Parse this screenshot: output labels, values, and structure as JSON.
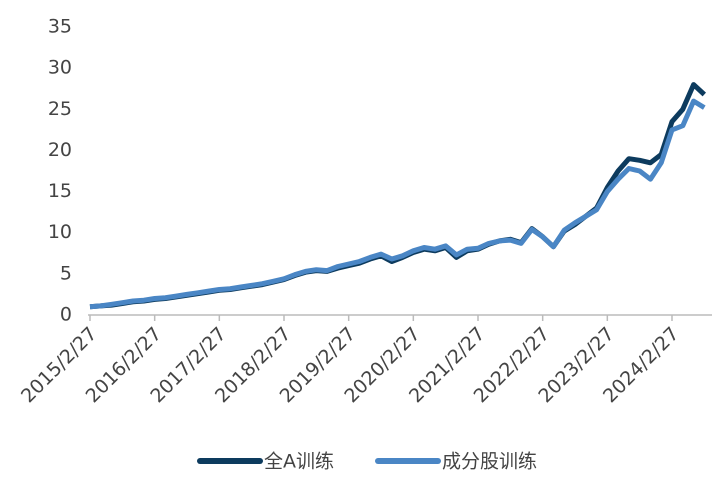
{
  "chart_data": {
    "type": "line",
    "categories": [
      "2015/2/27",
      null,
      null,
      null,
      null,
      null,
      "2016/2/27",
      null,
      null,
      null,
      null,
      null,
      "2017/2/27",
      null,
      null,
      null,
      null,
      null,
      "2018/2/27",
      null,
      null,
      null,
      null,
      null,
      "2019/2/27",
      null,
      null,
      null,
      null,
      null,
      "2020/2/27",
      null,
      null,
      null,
      null,
      null,
      "2021/2/27",
      null,
      null,
      null,
      null,
      null,
      "2022/2/27",
      null,
      null,
      null,
      null,
      null,
      "2023/2/27",
      null,
      null,
      null,
      null,
      null,
      "2024/2/27",
      null,
      null,
      null
    ],
    "series": [
      {
        "name": "全A训练",
        "color": "#0d3b5e",
        "values": [
          1.0,
          1.1,
          1.2,
          1.4,
          1.6,
          1.7,
          1.9,
          2.0,
          2.2,
          2.4,
          2.6,
          2.8,
          3.0,
          3.1,
          3.3,
          3.5,
          3.7,
          4.0,
          4.3,
          4.8,
          5.2,
          5.4,
          5.3,
          5.7,
          6.0,
          6.3,
          6.8,
          7.2,
          6.5,
          7.0,
          7.6,
          8.0,
          7.8,
          8.2,
          7.0,
          7.8,
          8.0,
          8.6,
          9.0,
          9.2,
          8.8,
          10.5,
          9.5,
          8.3,
          10.2,
          11.0,
          12.0,
          13.0,
          15.5,
          17.5,
          19.0,
          18.8,
          18.5,
          19.5,
          23.5,
          25.0,
          28.0,
          26.8
        ]
      },
      {
        "name": "成分股训练",
        "color": "#4a86c5",
        "values": [
          1.0,
          1.1,
          1.3,
          1.5,
          1.7,
          1.8,
          2.0,
          2.1,
          2.3,
          2.5,
          2.7,
          2.9,
          3.1,
          3.2,
          3.4,
          3.6,
          3.8,
          4.1,
          4.4,
          4.9,
          5.3,
          5.5,
          5.4,
          5.9,
          6.2,
          6.5,
          7.0,
          7.4,
          6.8,
          7.2,
          7.8,
          8.2,
          8.0,
          8.4,
          7.3,
          8.0,
          8.1,
          8.7,
          9.0,
          9.1,
          8.7,
          10.4,
          9.5,
          8.3,
          10.3,
          11.2,
          12.0,
          12.8,
          15.0,
          16.5,
          17.8,
          17.5,
          16.5,
          18.5,
          22.5,
          23.0,
          26.0,
          25.2
        ]
      }
    ],
    "ylim": [
      0,
      35
    ],
    "yticks": [
      0,
      5,
      10,
      15,
      20,
      25,
      30,
      35
    ],
    "grid": false,
    "legend": "bottom"
  }
}
